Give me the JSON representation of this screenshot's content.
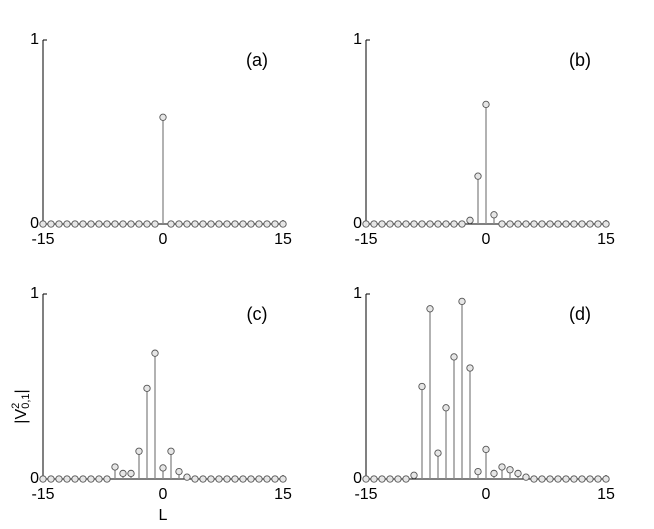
{
  "chart_data": [
    {
      "type": "stem",
      "annotation": "(a)",
      "xlim": [
        -15,
        15
      ],
      "ylim": [
        0,
        1
      ],
      "xticks": [
        -15,
        0,
        15
      ],
      "yticks": [
        0,
        1
      ],
      "color": "#888888",
      "x": [
        -15,
        -14,
        -13,
        -12,
        -11,
        -10,
        -9,
        -8,
        -7,
        -6,
        -5,
        -4,
        -3,
        -2,
        -1,
        0,
        1,
        2,
        3,
        4,
        5,
        6,
        7,
        8,
        9,
        10,
        11,
        12,
        13,
        14,
        15
      ],
      "values": [
        0,
        0,
        0,
        0,
        0,
        0,
        0,
        0,
        0,
        0,
        0,
        0,
        0,
        0,
        0,
        0.58,
        0,
        0,
        0,
        0,
        0,
        0,
        0,
        0,
        0,
        0,
        0,
        0,
        0,
        0,
        0
      ]
    },
    {
      "type": "stem",
      "annotation": "(b)",
      "xlim": [
        -15,
        15
      ],
      "ylim": [
        0,
        1
      ],
      "xticks": [
        -15,
        0,
        15
      ],
      "yticks": [
        0,
        1
      ],
      "color": "#888888",
      "x": [
        -15,
        -14,
        -13,
        -12,
        -11,
        -10,
        -9,
        -8,
        -7,
        -6,
        -5,
        -4,
        -3,
        -2,
        -1,
        0,
        1,
        2,
        3,
        4,
        5,
        6,
        7,
        8,
        9,
        10,
        11,
        12,
        13,
        14,
        15
      ],
      "values": [
        0,
        0,
        0,
        0,
        0,
        0,
        0,
        0,
        0,
        0,
        0,
        0,
        0,
        0.02,
        0.26,
        0.65,
        0.05,
        0,
        0,
        0,
        0,
        0,
        0,
        0,
        0,
        0,
        0,
        0,
        0,
        0,
        0
      ]
    },
    {
      "type": "stem",
      "annotation": "(c)",
      "xlabel": "L",
      "ylabel": {
        "base": "|V",
        "sup": "2",
        "sub": "0,1",
        "end": "|"
      },
      "xlim": [
        -15,
        15
      ],
      "ylim": [
        0,
        1
      ],
      "xticks": [
        -15,
        0,
        15
      ],
      "yticks": [
        0,
        1
      ],
      "color": "#888888",
      "x": [
        -15,
        -14,
        -13,
        -12,
        -11,
        -10,
        -9,
        -8,
        -7,
        -6,
        -5,
        -4,
        -3,
        -2,
        -1,
        0,
        1,
        2,
        3,
        4,
        5,
        6,
        7,
        8,
        9,
        10,
        11,
        12,
        13,
        14,
        15
      ],
      "values": [
        0,
        0,
        0,
        0,
        0,
        0,
        0,
        0,
        0,
        0.065,
        0.03,
        0.03,
        0.15,
        0.49,
        0.68,
        0.06,
        0.15,
        0.04,
        0.01,
        0,
        0,
        0,
        0,
        0,
        0,
        0,
        0,
        0,
        0,
        0,
        0
      ]
    },
    {
      "type": "stem",
      "annotation": "(d)",
      "xlim": [
        -15,
        15
      ],
      "ylim": [
        0,
        1
      ],
      "xticks": [
        -15,
        0,
        15
      ],
      "yticks": [
        0,
        1
      ],
      "color": "#888888",
      "x": [
        -15,
        -14,
        -13,
        -12,
        -11,
        -10,
        -9,
        -8,
        -7,
        -6,
        -5,
        -4,
        -3,
        -2,
        -1,
        0,
        1,
        2,
        3,
        4,
        5,
        6,
        7,
        8,
        9,
        10,
        11,
        12,
        13,
        14,
        15
      ],
      "values": [
        0,
        0,
        0,
        0,
        0,
        0,
        0.02,
        0.5,
        0.92,
        0.14,
        0.385,
        0.66,
        0.96,
        0.6,
        0.04,
        0.16,
        0.03,
        0.065,
        0.05,
        0.03,
        0.01,
        0,
        0,
        0,
        0,
        0,
        0,
        0,
        0,
        0,
        0
      ]
    }
  ]
}
